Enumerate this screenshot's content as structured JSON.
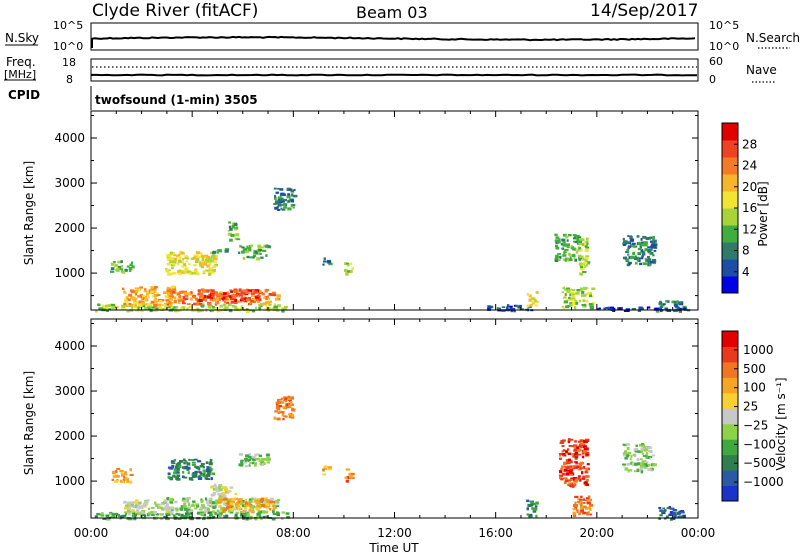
{
  "header": {
    "title": "Clyde River (fitACF)",
    "beam": "Beam 03",
    "date": "14/Sep/2017"
  },
  "strip1": {
    "left_label": "N.Sky",
    "left_ticks": [
      "10^5",
      "10^0"
    ],
    "right_label": "N.Search",
    "right_ticks": [
      "10^5",
      "10^0"
    ]
  },
  "strip2": {
    "left_label_top": "Freq.",
    "left_label_bottom": "[MHz]",
    "left_ticks": [
      "18",
      "8"
    ],
    "right_label": "Nave",
    "right_ticks": [
      "60",
      "0"
    ]
  },
  "cpid": {
    "label": "CPID",
    "value": "twofsound (1-min) 3505"
  },
  "x_axis": {
    "label": "Time UT",
    "ticks": [
      "00:00",
      "04:00",
      "08:00",
      "12:00",
      "16:00",
      "20:00",
      "00:00"
    ]
  },
  "chart_data": [
    {
      "type": "heatmap",
      "name": "power",
      "ylabel": "Slant Range [km]",
      "yticks": [
        1000,
        2000,
        3000,
        4000
      ],
      "ylim": [
        180,
        4600
      ],
      "xlim": [
        0,
        24
      ],
      "xlabel": "Time UT",
      "colorbar": {
        "label": "Power [dB]",
        "ticks": [
          4,
          8,
          12,
          16,
          20,
          24,
          28
        ],
        "range": [
          0,
          32
        ],
        "colors": [
          "#0000e6",
          "#1c4ea8",
          "#2f7a6a",
          "#3fae3f",
          "#a8d43a",
          "#f2e531",
          "#f7b52b",
          "#f57a26",
          "#ef4223",
          "#e00000"
        ]
      },
      "blobs": [
        {
          "t0": 0.15,
          "t1": 7.8,
          "r0": 180,
          "r1": 330,
          "power": 14
        },
        {
          "t0": 2.9,
          "t1": 7.4,
          "r0": 330,
          "r1": 650,
          "power": 22
        },
        {
          "t0": 4.2,
          "t1": 6.6,
          "r0": 420,
          "r1": 660,
          "power": 27
        },
        {
          "t0": 1.2,
          "t1": 3.2,
          "r0": 300,
          "r1": 720,
          "power": 18
        },
        {
          "t0": 0.7,
          "t1": 1.6,
          "r0": 1050,
          "r1": 1300,
          "power": 8
        },
        {
          "t0": 2.9,
          "t1": 4.9,
          "r0": 1000,
          "r1": 1500,
          "power": 15
        },
        {
          "t0": 4.7,
          "t1": 5.3,
          "r0": 1450,
          "r1": 1560,
          "power": 10
        },
        {
          "t0": 5.8,
          "t1": 7.0,
          "r0": 1350,
          "r1": 1650,
          "power": 8
        },
        {
          "t0": 5.4,
          "t1": 5.8,
          "r0": 1750,
          "r1": 2150,
          "power": 10
        },
        {
          "t0": 9.1,
          "t1": 9.4,
          "r0": 1150,
          "r1": 1350,
          "power": 5
        },
        {
          "t0": 10.0,
          "t1": 10.3,
          "r0": 1000,
          "r1": 1300,
          "power": 12
        },
        {
          "t0": 7.2,
          "t1": 8.0,
          "r0": 2400,
          "r1": 2900,
          "power": 5
        },
        {
          "t0": 15.6,
          "t1": 17.4,
          "r0": 180,
          "r1": 320,
          "power": 4
        },
        {
          "t0": 17.2,
          "t1": 17.6,
          "r0": 300,
          "r1": 600,
          "power": 16
        },
        {
          "t0": 18.3,
          "t1": 19.3,
          "r0": 1300,
          "r1": 1900,
          "power": 8
        },
        {
          "t0": 19.2,
          "t1": 19.6,
          "r0": 1000,
          "r1": 1800,
          "power": 13
        },
        {
          "t0": 18.6,
          "t1": 19.8,
          "r0": 250,
          "r1": 700,
          "power": 12
        },
        {
          "t0": 21.0,
          "t1": 22.3,
          "r0": 1200,
          "r1": 1850,
          "power": 6
        },
        {
          "t0": 22.3,
          "t1": 23.4,
          "r0": 180,
          "r1": 400,
          "power": 5
        },
        {
          "t0": 19.8,
          "t1": 23.6,
          "r0": 180,
          "r1": 260,
          "power": 4
        }
      ]
    },
    {
      "type": "heatmap",
      "name": "velocity",
      "ylabel": "Slant Range [km]",
      "yticks": [
        1000,
        2000,
        3000,
        4000
      ],
      "ylim": [
        180,
        4600
      ],
      "xlim": [
        0,
        24
      ],
      "xlabel": "Time UT",
      "colorbar": {
        "label": "Velocity [m s⁻¹]",
        "ticks": [
          "1000",
          "500",
          "100",
          "25",
          "−25",
          "−100",
          "−500",
          "−1000"
        ],
        "colors": [
          "#1a33c8",
          "#2b59a6",
          "#2f7f4e",
          "#3fa93f",
          "#8ed24a",
          "#c8c8c8",
          "#f7d034",
          "#f5a623",
          "#f07621",
          "#e83a1d",
          "#e00000"
        ]
      },
      "blobs": [
        {
          "t0": 0.15,
          "t1": 7.8,
          "r0": 180,
          "r1": 330,
          "cat": 3
        },
        {
          "t0": 2.9,
          "t1": 7.4,
          "r0": 330,
          "r1": 650,
          "cat": 4
        },
        {
          "t0": 5.0,
          "t1": 7.2,
          "r0": 350,
          "r1": 640,
          "cat": 7
        },
        {
          "t0": 1.2,
          "t1": 3.0,
          "r0": 300,
          "r1": 600,
          "cat": 5
        },
        {
          "t0": 0.8,
          "t1": 1.6,
          "r0": 1000,
          "r1": 1300,
          "cat": 7
        },
        {
          "t0": 3.0,
          "t1": 4.8,
          "r0": 1050,
          "r1": 1500,
          "cat": 2
        },
        {
          "t0": 4.7,
          "t1": 5.7,
          "r0": 700,
          "r1": 950,
          "cat": 5
        },
        {
          "t0": 5.8,
          "t1": 7.0,
          "r0": 1350,
          "r1": 1650,
          "cat": 4
        },
        {
          "t0": 7.2,
          "t1": 8.0,
          "r0": 2400,
          "r1": 2900,
          "cat": 8
        },
        {
          "t0": 9.1,
          "t1": 9.4,
          "r0": 1150,
          "r1": 1350,
          "cat": 7
        },
        {
          "t0": 10.0,
          "t1": 10.3,
          "r0": 1000,
          "r1": 1300,
          "cat": 8
        },
        {
          "t0": 17.2,
          "t1": 17.6,
          "r0": 200,
          "r1": 600,
          "cat": 2
        },
        {
          "t0": 18.5,
          "t1": 19.6,
          "r0": 900,
          "r1": 1950,
          "cat": 9
        },
        {
          "t0": 19.0,
          "t1": 19.8,
          "r0": 250,
          "r1": 700,
          "cat": 8
        },
        {
          "t0": 21.0,
          "t1": 22.2,
          "r0": 1200,
          "r1": 1850,
          "cat": 4
        },
        {
          "t0": 22.3,
          "t1": 23.4,
          "r0": 180,
          "r1": 450,
          "cat": 1
        }
      ]
    }
  ]
}
